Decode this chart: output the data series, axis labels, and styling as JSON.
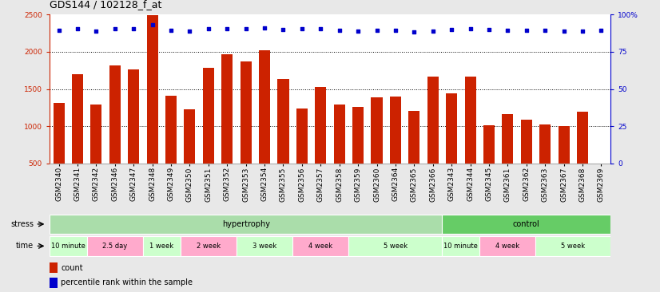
{
  "title": "GDS144 / 102128_f_at",
  "samples": [
    "GSM2340",
    "GSM2341",
    "GSM2342",
    "GSM2346",
    "GSM2347",
    "GSM2348",
    "GSM2349",
    "GSM2350",
    "GSM2351",
    "GSM2352",
    "GSM2353",
    "GSM2354",
    "GSM2355",
    "GSM2356",
    "GSM2357",
    "GSM2358",
    "GSM2359",
    "GSM2360",
    "GSM2364",
    "GSM2365",
    "GSM2366",
    "GSM2343",
    "GSM2344",
    "GSM2345",
    "GSM2361",
    "GSM2362",
    "GSM2363",
    "GSM2367",
    "GSM2368",
    "GSM2369"
  ],
  "counts": [
    1310,
    1700,
    1295,
    1815,
    1760,
    2490,
    1415,
    1230,
    1785,
    1970,
    1870,
    2025,
    1630,
    1240,
    1530,
    1290,
    1255,
    1390,
    1400,
    1210,
    1670,
    1440,
    1670,
    1010,
    1160,
    1090,
    1025,
    1000,
    1200,
    490
  ],
  "percentile_vals": [
    2290,
    2310,
    2280,
    2315,
    2305,
    2360,
    2290,
    2280,
    2310,
    2310,
    2310,
    2320,
    2295,
    2310,
    2310,
    2290,
    2280,
    2290,
    2285,
    2270,
    2280,
    2300,
    2310,
    2300,
    2290,
    2285,
    2290,
    2275,
    2275,
    2285
  ],
  "bar_color": "#cc2200",
  "dot_color": "#0000cc",
  "ylim_left": [
    500,
    2500
  ],
  "ylim_right": [
    0,
    100
  ],
  "yticks_left": [
    500,
    1000,
    1500,
    2000,
    2500
  ],
  "yticks_right": [
    0,
    25,
    50,
    75,
    100
  ],
  "grid_values": [
    1000,
    1500,
    2000
  ],
  "stress_groups": [
    {
      "label": "hypertrophy",
      "start": 0,
      "end": 21,
      "color": "#aaddaa"
    },
    {
      "label": "control",
      "start": 21,
      "end": 30,
      "color": "#66cc66"
    }
  ],
  "time_groups": [
    {
      "label": "10 minute",
      "start": 0,
      "end": 2,
      "color": "#ccffcc"
    },
    {
      "label": "2.5 day",
      "start": 2,
      "end": 5,
      "color": "#ffaacc"
    },
    {
      "label": "1 week",
      "start": 5,
      "end": 7,
      "color": "#ccffcc"
    },
    {
      "label": "2 week",
      "start": 7,
      "end": 10,
      "color": "#ffaacc"
    },
    {
      "label": "3 week",
      "start": 10,
      "end": 13,
      "color": "#ccffcc"
    },
    {
      "label": "4 week",
      "start": 13,
      "end": 16,
      "color": "#ffaacc"
    },
    {
      "label": "5 week",
      "start": 16,
      "end": 21,
      "color": "#ccffcc"
    },
    {
      "label": "10 minute",
      "start": 21,
      "end": 23,
      "color": "#ccffcc"
    },
    {
      "label": "4 week",
      "start": 23,
      "end": 26,
      "color": "#ffaacc"
    },
    {
      "label": "5 week",
      "start": 26,
      "end": 30,
      "color": "#ccffcc"
    }
  ],
  "bg_color": "#e8e8e8",
  "plot_bg": "#ffffff",
  "label_fontsize": 6.5,
  "tick_fontsize": 6.5,
  "row_label_fontsize": 7,
  "title_fontsize": 9
}
